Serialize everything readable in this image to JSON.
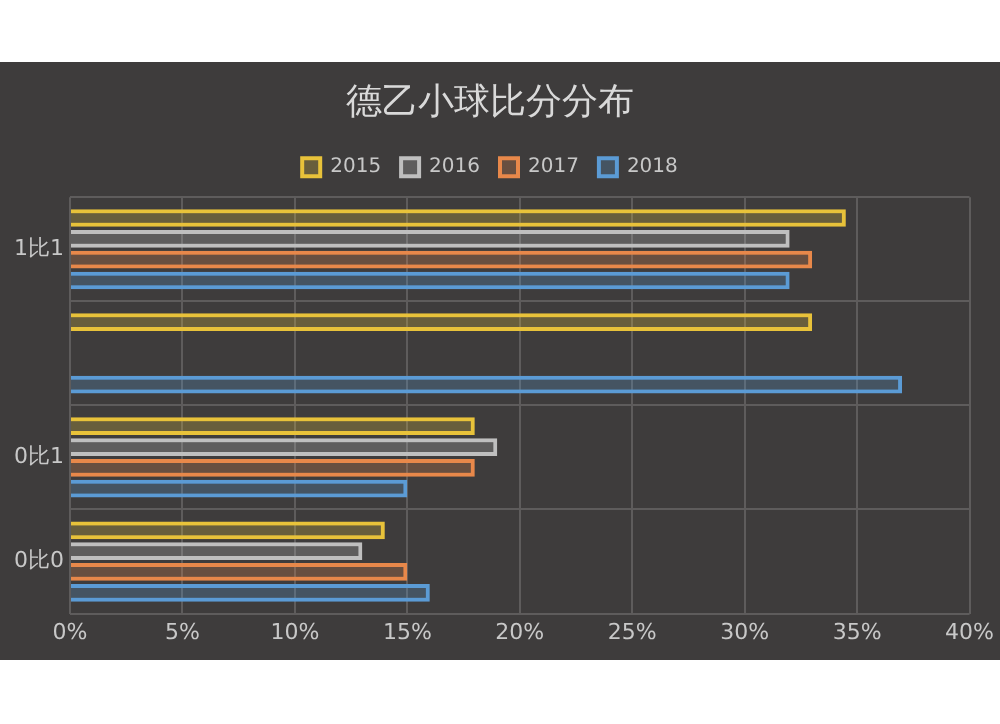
{
  "chart_data": {
    "type": "bar",
    "orientation": "horizontal",
    "title": "德乙小球比分分布",
    "categories": [
      "1比1",
      null,
      "0比1",
      "0比0"
    ],
    "series": [
      {
        "name": "2015",
        "color": "#e8c23a",
        "values": [
          34.5,
          33,
          18,
          14
        ]
      },
      {
        "name": "2016",
        "color": "#bfbfbf",
        "values": [
          32,
          null,
          19,
          13
        ]
      },
      {
        "name": "2017",
        "color": "#e8884a",
        "values": [
          33,
          null,
          18,
          15
        ]
      },
      {
        "name": "2018",
        "color": "#5b9bd5",
        "values": [
          32,
          37,
          15,
          16
        ]
      }
    ],
    "xlim": [
      0,
      40
    ],
    "xticks": [
      {
        "value": 0,
        "label": "0%"
      },
      {
        "value": 5,
        "label": "5%"
      },
      {
        "value": 10,
        "label": "10%"
      },
      {
        "value": 15,
        "label": "15%"
      },
      {
        "value": 20,
        "label": "20%"
      },
      {
        "value": 25,
        "label": "25%"
      },
      {
        "value": 30,
        "label": "30%"
      },
      {
        "value": 35,
        "label": "35%"
      },
      {
        "value": 40,
        "label": "40%"
      }
    ],
    "grid": true,
    "legend": "top"
  }
}
